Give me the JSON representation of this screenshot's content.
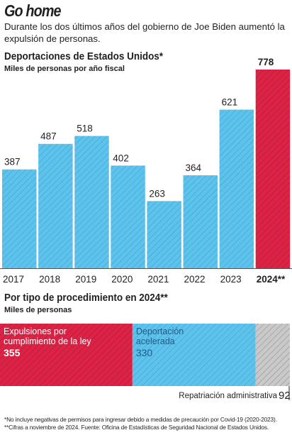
{
  "header": {
    "title": "Go home",
    "subtitle": "Durante los dos últimos años del gobierno de Joe Biden aumentó la expulsión de personas."
  },
  "colors": {
    "blue": "#5ec3ec",
    "red": "#dc2346",
    "gray": "#c9c9c9",
    "hatch_blue": "#3f9fc8",
    "hatch_red": "#a81935",
    "hatch_gray": "#8c8c8c"
  },
  "chart_data": [
    {
      "type": "bar",
      "title": "Deportaciones de Estados Unidos*",
      "subtitle": "Miles de personas por año fiscal",
      "categories": [
        "2017",
        "2018",
        "2019",
        "2020",
        "2021",
        "2022",
        "2023",
        "2024**"
      ],
      "values": [
        387,
        487,
        518,
        402,
        263,
        364,
        621,
        778
      ],
      "highlight": "2024**",
      "colors": [
        "#5ec3ec",
        "#5ec3ec",
        "#5ec3ec",
        "#5ec3ec",
        "#5ec3ec",
        "#5ec3ec",
        "#5ec3ec",
        "#dc2346"
      ]
    },
    {
      "type": "bar",
      "orientation": "horizontal-stacked",
      "title": "Por tipo de procedimiento en 2024**",
      "subtitle": "Miles de personas",
      "segments": [
        {
          "label": "Expulsiones por cumplimiento de la ley",
          "value": 355,
          "color": "#dc2346"
        },
        {
          "label": "Deportación acelerada",
          "value": 330,
          "color": "#5ec3ec"
        },
        {
          "label": "Repatriación administrativa",
          "value": 92,
          "color": "#c9c9c9"
        }
      ]
    }
  ],
  "footnotes": [
    "*No incluye negativas de permisos para ingresar debido a medidas de precaución por Covid-19 (2020-2023).",
    "**Cifras a noviembre de 2024. Fuente: Oficina de Estadísticas de Seguridad Nacional de Estados Unidos."
  ]
}
